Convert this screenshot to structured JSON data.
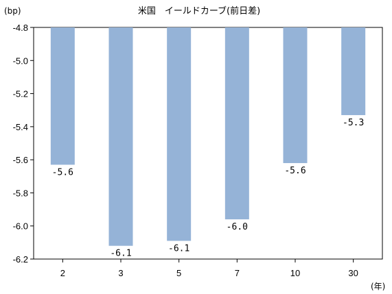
{
  "chart_data": {
    "type": "bar",
    "title": "米国　イールドカーブ(前日差)",
    "y_unit": "(bp)",
    "x_unit": "(年)",
    "categories": [
      "2",
      "3",
      "5",
      "7",
      "10",
      "30"
    ],
    "values": [
      -5.63,
      -6.12,
      -6.09,
      -5.96,
      -5.62,
      -5.33
    ],
    "data_labels": [
      "-5.6",
      "-6.1",
      "-6.1",
      "-6.0",
      "-5.6",
      "-5.3"
    ],
    "ylim": [
      -6.2,
      -4.8
    ],
    "yticks": [
      "-4.8",
      "-5.0",
      "-5.2",
      "-5.4",
      "-5.6",
      "-5.8",
      "-6.0",
      "-6.2"
    ],
    "bar_color": "#95B3D7",
    "grid": false,
    "legend": "none"
  }
}
